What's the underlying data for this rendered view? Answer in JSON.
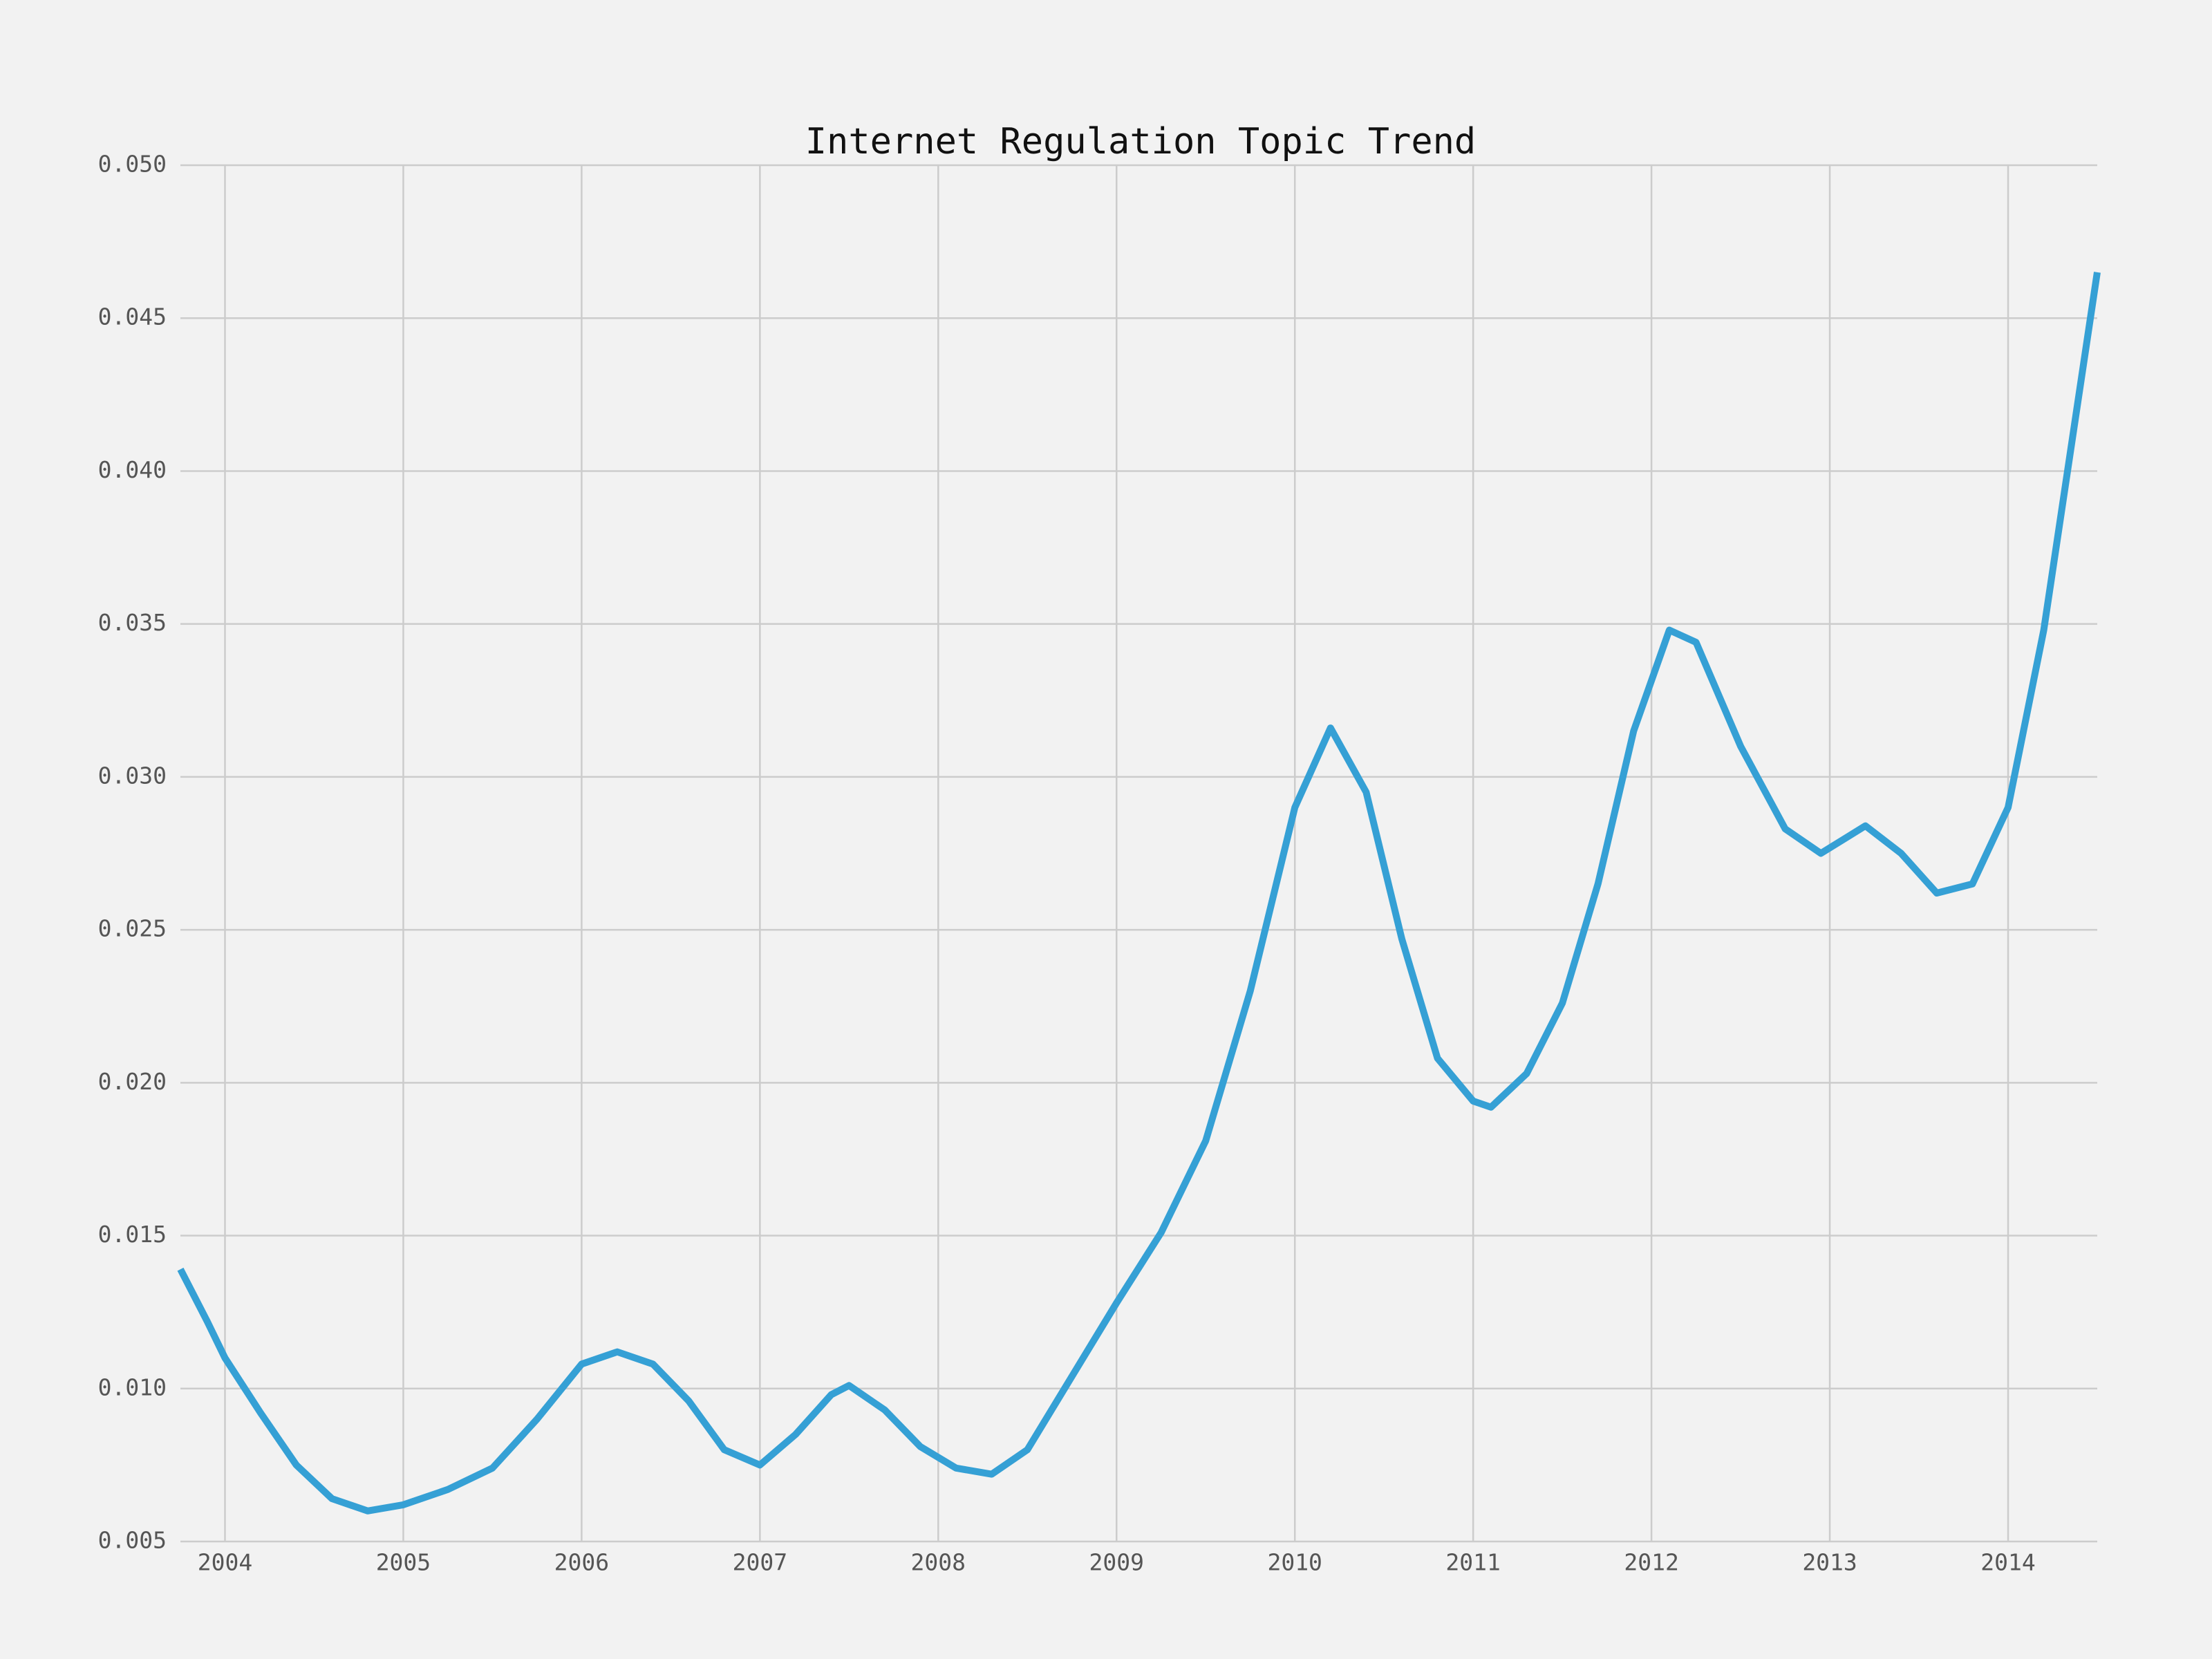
{
  "chart_data": {
    "type": "line",
    "title": "Internet Regulation Topic Trend",
    "x": [
      2003.75,
      2003.9,
      2004.0,
      2004.2,
      2004.4,
      2004.6,
      2004.8,
      2005.0,
      2005.25,
      2005.5,
      2005.75,
      2006.0,
      2006.2,
      2006.4,
      2006.6,
      2006.8,
      2007.0,
      2007.2,
      2007.4,
      2007.5,
      2007.7,
      2007.9,
      2008.1,
      2008.3,
      2008.5,
      2008.75,
      2009.0,
      2009.25,
      2009.5,
      2009.75,
      2010.0,
      2010.2,
      2010.4,
      2010.6,
      2010.8,
      2011.0,
      2011.1,
      2011.3,
      2011.5,
      2011.7,
      2011.9,
      2012.1,
      2012.25,
      2012.5,
      2012.75,
      2012.95,
      2013.2,
      2013.4,
      2013.6,
      2013.8,
      2014.0,
      2014.2,
      2014.5
    ],
    "series": [
      {
        "name": "Internet Regulation",
        "color": "#35a0d5",
        "values": [
          0.0139,
          0.0122,
          0.011,
          0.0092,
          0.0075,
          0.0064,
          0.006,
          0.0062,
          0.0067,
          0.0074,
          0.009,
          0.0108,
          0.0112,
          0.0108,
          0.0096,
          0.008,
          0.0075,
          0.0085,
          0.0098,
          0.0101,
          0.0093,
          0.0081,
          0.0074,
          0.0072,
          0.008,
          0.0104,
          0.0128,
          0.0151,
          0.0181,
          0.023,
          0.029,
          0.0316,
          0.0295,
          0.0247,
          0.0208,
          0.0194,
          0.0192,
          0.0203,
          0.0226,
          0.0265,
          0.0315,
          0.0348,
          0.0344,
          0.031,
          0.0283,
          0.0275,
          0.0284,
          0.0275,
          0.0262,
          0.0265,
          0.029,
          0.0348,
          0.0465
        ]
      }
    ],
    "xlim": [
      2003.75,
      2014.5
    ],
    "xticks": [
      2004,
      2005,
      2006,
      2007,
      2008,
      2009,
      2010,
      2011,
      2012,
      2013,
      2014
    ],
    "ylim": [
      0.005,
      0.05
    ],
    "yticks": [
      0.005,
      {
        "value": 0.01,
        "label": "0.010"
      },
      0.015,
      {
        "value": 0.02,
        "label": "0.020"
      },
      0.025,
      {
        "value": 0.03,
        "label": "0.030"
      },
      0.035,
      {
        "value": 0.04,
        "label": "0.040"
      },
      0.045,
      {
        "value": 0.05,
        "label": "0.050"
      }
    ],
    "grid": true
  }
}
